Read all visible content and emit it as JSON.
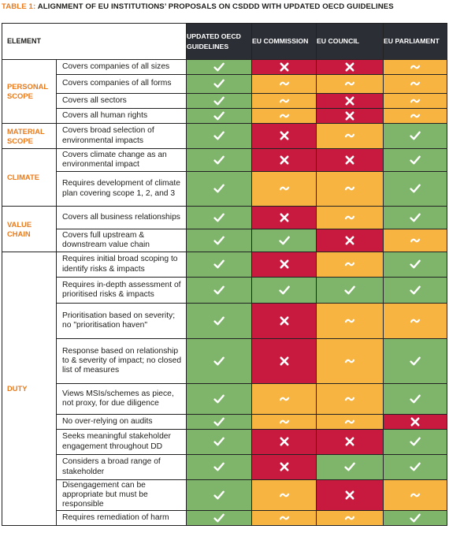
{
  "title": {
    "number": "TABLE 1:",
    "text": "ALIGNMENT OF EU INSTITUTIONS’ PROPOSALS ON CSDDD WITH UPDATED OECD GUIDELINES"
  },
  "header": {
    "element": "ELEMENT",
    "col1": "UPDATED OECD GUIDELINES",
    "col2": "EU COMMISSION",
    "col3": "EU COUNCIL",
    "col4": "EU PARLIAMENT"
  },
  "legend_colors": {
    "yes": "#7fb56a",
    "no": "#c81a3e",
    "partial": "#f8b440"
  },
  "groups": {
    "personal": "PERSONAL SCOPE",
    "material": "MATERIAL SCOPE",
    "climate": "CLIMATE",
    "value": "VALUE CHAIN",
    "duty": "DUTY"
  },
  "rows": [
    {
      "label": "Covers companies of all sizes",
      "marks": [
        "check",
        "cross",
        "cross",
        "tilde"
      ]
    },
    {
      "label": "Covers companies of all forms",
      "marks": [
        "check",
        "tilde",
        "tilde",
        "tilde"
      ]
    },
    {
      "label": "Covers all sectors",
      "marks": [
        "check",
        "tilde",
        "cross",
        "tilde"
      ]
    },
    {
      "label": "Covers all human rights",
      "marks": [
        "check",
        "tilde",
        "cross",
        "tilde"
      ]
    },
    {
      "label": "Covers broad selection of environmental impacts",
      "marks": [
        "check",
        "cross",
        "tilde",
        "check"
      ]
    },
    {
      "label": "Covers climate change as an environmental impact",
      "marks": [
        "check",
        "cross",
        "cross",
        "check"
      ]
    },
    {
      "label": "Requires development of climate plan covering scope 1, 2, and 3",
      "marks": [
        "check",
        "tilde",
        "tilde",
        "check"
      ]
    },
    {
      "label": "Covers all business relationships",
      "marks": [
        "check",
        "cross",
        "tilde",
        "check"
      ]
    },
    {
      "label": "Covers full upstream & downstream value chain",
      "marks": [
        "check",
        "check",
        "cross",
        "tilde"
      ]
    },
    {
      "label": "Requires initial broad scoping to identify risks & impacts",
      "marks": [
        "check",
        "cross",
        "tilde",
        "check"
      ]
    },
    {
      "label": "Requires in-depth assessment of prioritised risks & impacts",
      "marks": [
        "check",
        "check",
        "check",
        "check"
      ]
    },
    {
      "label": "Prioritisation based on severity; no \"prioritisation haven\"",
      "marks": [
        "check",
        "cross",
        "tilde",
        "tilde"
      ]
    },
    {
      "label": "Response based on relationship to & severity of impact; no closed list of measures",
      "marks": [
        "check",
        "cross",
        "tilde",
        "check"
      ]
    },
    {
      "label": "Views MSIs/schemes as piece, not proxy, for due diligence",
      "marks": [
        "check",
        "tilde",
        "tilde",
        "check"
      ]
    },
    {
      "label": "No over-relying on audits",
      "marks": [
        "check",
        "tilde",
        "tilde",
        "cross"
      ]
    },
    {
      "label": "Seeks meaningful stakeholder engagement throughout DD",
      "marks": [
        "check",
        "cross",
        "cross",
        "check"
      ]
    },
    {
      "label": "Considers a broad range of stakeholder",
      "marks": [
        "check",
        "cross",
        "check",
        "check"
      ]
    },
    {
      "label": "Disengagement can be appropriate but must be responsible",
      "marks": [
        "check",
        "tilde",
        "cross",
        "tilde"
      ]
    },
    {
      "label": "Requires remediation of harm",
      "marks": [
        "check",
        "tilde",
        "tilde",
        "check"
      ]
    }
  ]
}
